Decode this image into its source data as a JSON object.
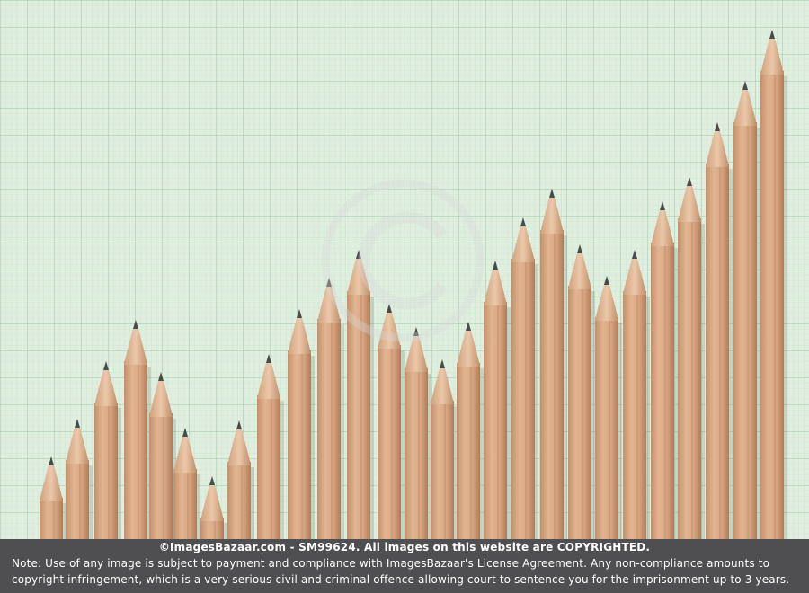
{
  "image": {
    "subject": "pencils-bar-chart",
    "pencil_count": 28,
    "colors": {
      "paper": "#dfeede",
      "grid_minor": "#b8d8b9",
      "grid_major": "#8fc39a",
      "wood": "#d8a883",
      "wood_dark": "#b98460",
      "graphite": "#4a4a4a",
      "footer_bg": "#4f4f51",
      "footer_text": "#ffffff"
    },
    "watermark_symbol": "©"
  },
  "footer": {
    "credit": "©ImagesBazaar.com - SM99624. All images on this website are COPYRIGHTED.",
    "note_line1": "Note: Use of any image is subject to payment and compliance with ImagesBazaar's License Agreement. Any non-compliance amounts to",
    "note_line2": "copyright infringement, which is a very serious civil and criminal offence allowing court to sentence you for the imprisonment up to 3 years."
  }
}
